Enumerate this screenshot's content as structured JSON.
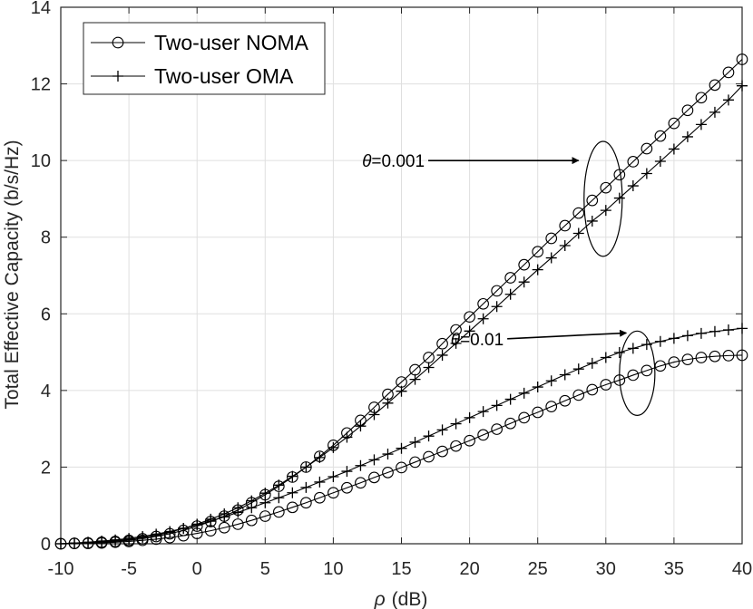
{
  "chart_data": {
    "type": "line",
    "title": "",
    "xlabel_var": "ρ",
    "xlabel_unit": "(dB)",
    "ylabel": "Total Effective Capacity (b/s/Hz)",
    "xlim": [
      -10,
      40
    ],
    "ylim": [
      0,
      14
    ],
    "grid": true,
    "legend_position": "top-left",
    "x_ticks": [
      -10,
      -5,
      0,
      5,
      10,
      15,
      20,
      25,
      30,
      35,
      40
    ],
    "x_tick_labels": [
      "-10",
      "-5",
      "0",
      "5",
      "10",
      "15",
      "20",
      "25",
      "30",
      "35",
      "40"
    ],
    "y_ticks": [
      0,
      2,
      4,
      6,
      8,
      10,
      12,
      14
    ],
    "y_tick_labels": [
      "0",
      "2",
      "4",
      "6",
      "8",
      "10",
      "12",
      "14"
    ],
    "legend": [
      {
        "label": "Two-user NOMA",
        "marker": "circle"
      },
      {
        "label": "Two-user OMA",
        "marker": "plus"
      }
    ],
    "x": [
      -10,
      -9,
      -8,
      -7,
      -6,
      -5,
      -4,
      -3,
      -2,
      -1,
      0,
      1,
      2,
      3,
      4,
      5,
      6,
      7,
      8,
      9,
      10,
      11,
      12,
      13,
      14,
      15,
      16,
      17,
      18,
      19,
      20,
      21,
      22,
      23,
      24,
      25,
      26,
      27,
      28,
      29,
      30,
      31,
      32,
      33,
      34,
      35,
      36,
      37,
      38,
      39,
      40
    ],
    "series": [
      {
        "name": "Two-user NOMA",
        "theta": "0.001",
        "marker": "circle",
        "values": [
          0.0,
          0.01,
          0.02,
          0.04,
          0.06,
          0.09,
          0.13,
          0.19,
          0.26,
          0.35,
          0.46,
          0.58,
          0.72,
          0.88,
          1.07,
          1.28,
          1.5,
          1.74,
          2.0,
          2.28,
          2.57,
          2.89,
          3.22,
          3.56,
          3.9,
          4.22,
          4.54,
          4.86,
          5.22,
          5.58,
          5.92,
          6.26,
          6.6,
          6.94,
          7.28,
          7.62,
          7.97,
          8.3,
          8.63,
          8.96,
          9.29,
          9.63,
          9.97,
          10.31,
          10.64,
          10.97,
          11.31,
          11.64,
          11.97,
          12.3,
          12.64
        ]
      },
      {
        "name": "Two-user OMA",
        "theta": "0.001",
        "marker": "plus",
        "values": [
          0.0,
          0.01,
          0.03,
          0.05,
          0.08,
          0.11,
          0.16,
          0.22,
          0.3,
          0.4,
          0.51,
          0.64,
          0.78,
          0.94,
          1.12,
          1.32,
          1.53,
          1.76,
          2.0,
          2.25,
          2.51,
          2.78,
          3.07,
          3.37,
          3.67,
          3.98,
          4.29,
          4.6,
          4.92,
          5.23,
          5.55,
          5.87,
          6.19,
          6.51,
          6.83,
          7.15,
          7.46,
          7.78,
          8.1,
          8.42,
          8.7,
          9.02,
          9.34,
          9.66,
          9.98,
          10.3,
          10.62,
          10.94,
          11.26,
          11.58,
          11.95
        ]
      },
      {
        "name": "Two-user NOMA",
        "theta": "0.01",
        "marker": "circle",
        "values": [
          0.0,
          0.01,
          0.01,
          0.02,
          0.04,
          0.06,
          0.09,
          0.12,
          0.16,
          0.21,
          0.27,
          0.34,
          0.42,
          0.51,
          0.61,
          0.72,
          0.83,
          0.95,
          1.07,
          1.2,
          1.33,
          1.46,
          1.59,
          1.73,
          1.86,
          1.99,
          2.13,
          2.27,
          2.41,
          2.55,
          2.69,
          2.84,
          2.99,
          3.14,
          3.29,
          3.43,
          3.58,
          3.73,
          3.88,
          4.02,
          4.15,
          4.27,
          4.4,
          4.52,
          4.64,
          4.74,
          4.81,
          4.86,
          4.89,
          4.91,
          4.92
        ]
      },
      {
        "name": "Two-user OMA",
        "theta": "0.01",
        "marker": "plus",
        "values": [
          0.0,
          0.02,
          0.04,
          0.07,
          0.1,
          0.14,
          0.19,
          0.25,
          0.32,
          0.4,
          0.49,
          0.59,
          0.7,
          0.82,
          0.94,
          1.07,
          1.2,
          1.33,
          1.47,
          1.61,
          1.75,
          1.89,
          2.04,
          2.19,
          2.34,
          2.49,
          2.65,
          2.81,
          2.97,
          3.13,
          3.29,
          3.45,
          3.61,
          3.77,
          3.93,
          4.09,
          4.25,
          4.41,
          4.56,
          4.71,
          4.86,
          4.99,
          5.1,
          5.2,
          5.28,
          5.36,
          5.43,
          5.49,
          5.54,
          5.58,
          5.62
        ]
      }
    ],
    "annotations": [
      {
        "var": "θ",
        "value": "=0.001",
        "text_anchor": [
          16.7,
          10.0
        ],
        "arrow_to": [
          28.0,
          10.0
        ],
        "ellipse_center": [
          29.8,
          9.0
        ],
        "ellipse_radius": [
          1.4,
          1.5
        ]
      },
      {
        "var": "θ",
        "value": "=0.01",
        "text_anchor": [
          22.5,
          5.35
        ],
        "arrow_to": [
          31.5,
          5.5
        ],
        "ellipse_center": [
          32.3,
          4.45
        ],
        "ellipse_radius": [
          1.3,
          1.1
        ]
      }
    ]
  }
}
